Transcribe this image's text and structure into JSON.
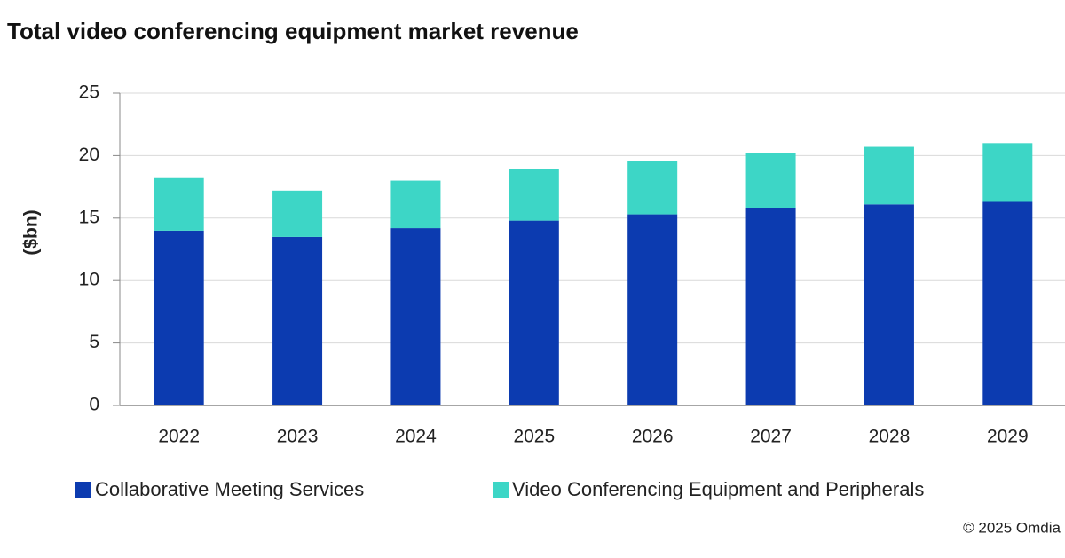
{
  "chart_data": {
    "type": "stacked_bar",
    "title": "Total video conferencing equipment market revenue",
    "y_label": "($bn)",
    "source": "© 2025 Omdia",
    "categories": [
      "2022",
      "2023",
      "2024",
      "2025",
      "2026",
      "2027",
      "2028",
      "2029"
    ],
    "series": [
      {
        "name": "Collaborative Meeting Services",
        "color": "#0c3bb0",
        "values": [
          14.0,
          13.5,
          14.2,
          14.8,
          15.3,
          15.8,
          16.1,
          16.3
        ]
      },
      {
        "name": "Video Conferencing Equipment and Peripherals",
        "color": "#3dd6c6",
        "values": [
          4.2,
          3.7,
          3.8,
          4.1,
          4.3,
          4.4,
          4.6,
          4.7
        ]
      }
    ],
    "ylim": [
      0,
      25
    ],
    "yticks": [
      0,
      5,
      10,
      15,
      20,
      25
    ],
    "grid": true
  }
}
